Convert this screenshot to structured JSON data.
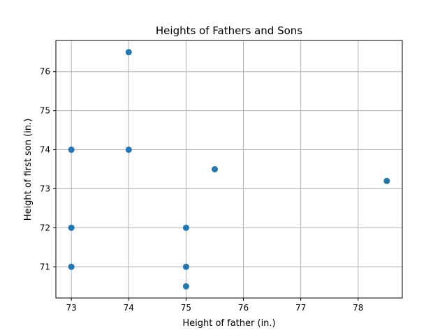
{
  "chart_data": {
    "type": "scatter",
    "title": "Heights of Fathers and Sons",
    "xlabel": "Height of father (in.)",
    "ylabel": "Height of first son (in.)",
    "xlim": [
      72.73,
      78.77
    ],
    "ylim": [
      70.2,
      76.8
    ],
    "xticks": [
      73,
      74,
      75,
      76,
      77,
      78
    ],
    "yticks": [
      71,
      72,
      73,
      74,
      75,
      76
    ],
    "grid": true,
    "marker_color": "#1f77b4",
    "series": [
      {
        "x": [
          74,
          73,
          74,
          75.5,
          78.5,
          73,
          75,
          73,
          75,
          75
        ],
        "y": [
          76.5,
          74,
          74,
          73.5,
          73.2,
          72,
          72,
          71,
          71,
          70.5
        ]
      }
    ]
  }
}
